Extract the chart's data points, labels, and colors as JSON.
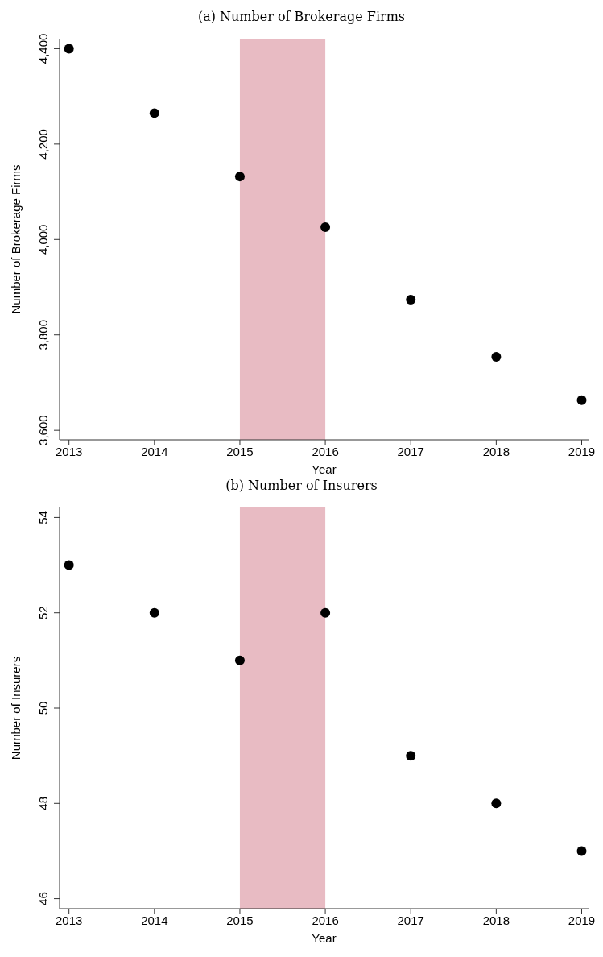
{
  "chart_data": [
    {
      "type": "scatter",
      "title": "(a) Number of Brokerage Firms",
      "xlabel": "Year",
      "ylabel": "Number of Brokerage Firms",
      "x": [
        2013,
        2014,
        2015,
        2016,
        2017,
        2018,
        2019
      ],
      "series": [
        {
          "color": "#000000",
          "values": [
            4400,
            4265,
            4132,
            4026,
            3874,
            3754,
            3663
          ]
        }
      ],
      "xlim": [
        2012.89,
        2019.08
      ],
      "xticks": [
        2013,
        2014,
        2015,
        2016,
        2017,
        2018,
        2019
      ],
      "ylim": [
        3580,
        4421
      ],
      "yticks": [
        {
          "value": 3600,
          "label": "3,600"
        },
        {
          "value": 3800,
          "label": "3,800"
        },
        {
          "value": 4000,
          "label": "4,000"
        },
        {
          "value": 4200,
          "label": "4,200"
        },
        {
          "value": 4400,
          "label": "4,400"
        }
      ],
      "bands": [
        {
          "axis": "x",
          "from": 2015,
          "to": 2016,
          "color": "#e8bbc3"
        }
      ],
      "marker": "circle",
      "legend": false
    },
    {
      "type": "scatter",
      "title": "(b) Number of Insurers",
      "xlabel": "Year",
      "ylabel": "Number of Insurers",
      "x": [
        2013,
        2014,
        2015,
        2016,
        2017,
        2018,
        2019
      ],
      "series": [
        {
          "color": "#000000",
          "values": [
            53,
            52,
            51,
            52,
            49,
            48,
            47
          ]
        }
      ],
      "xlim": [
        2012.89,
        2019.08
      ],
      "xticks": [
        2013,
        2014,
        2015,
        2016,
        2017,
        2018,
        2019
      ],
      "ylim": [
        45.79,
        54.21
      ],
      "yticks": [
        46,
        48,
        50,
        52,
        54
      ],
      "bands": [
        {
          "axis": "x",
          "from": 2015,
          "to": 2016,
          "color": "#e8bbc3"
        }
      ],
      "marker": "circle",
      "legend": false
    }
  ]
}
